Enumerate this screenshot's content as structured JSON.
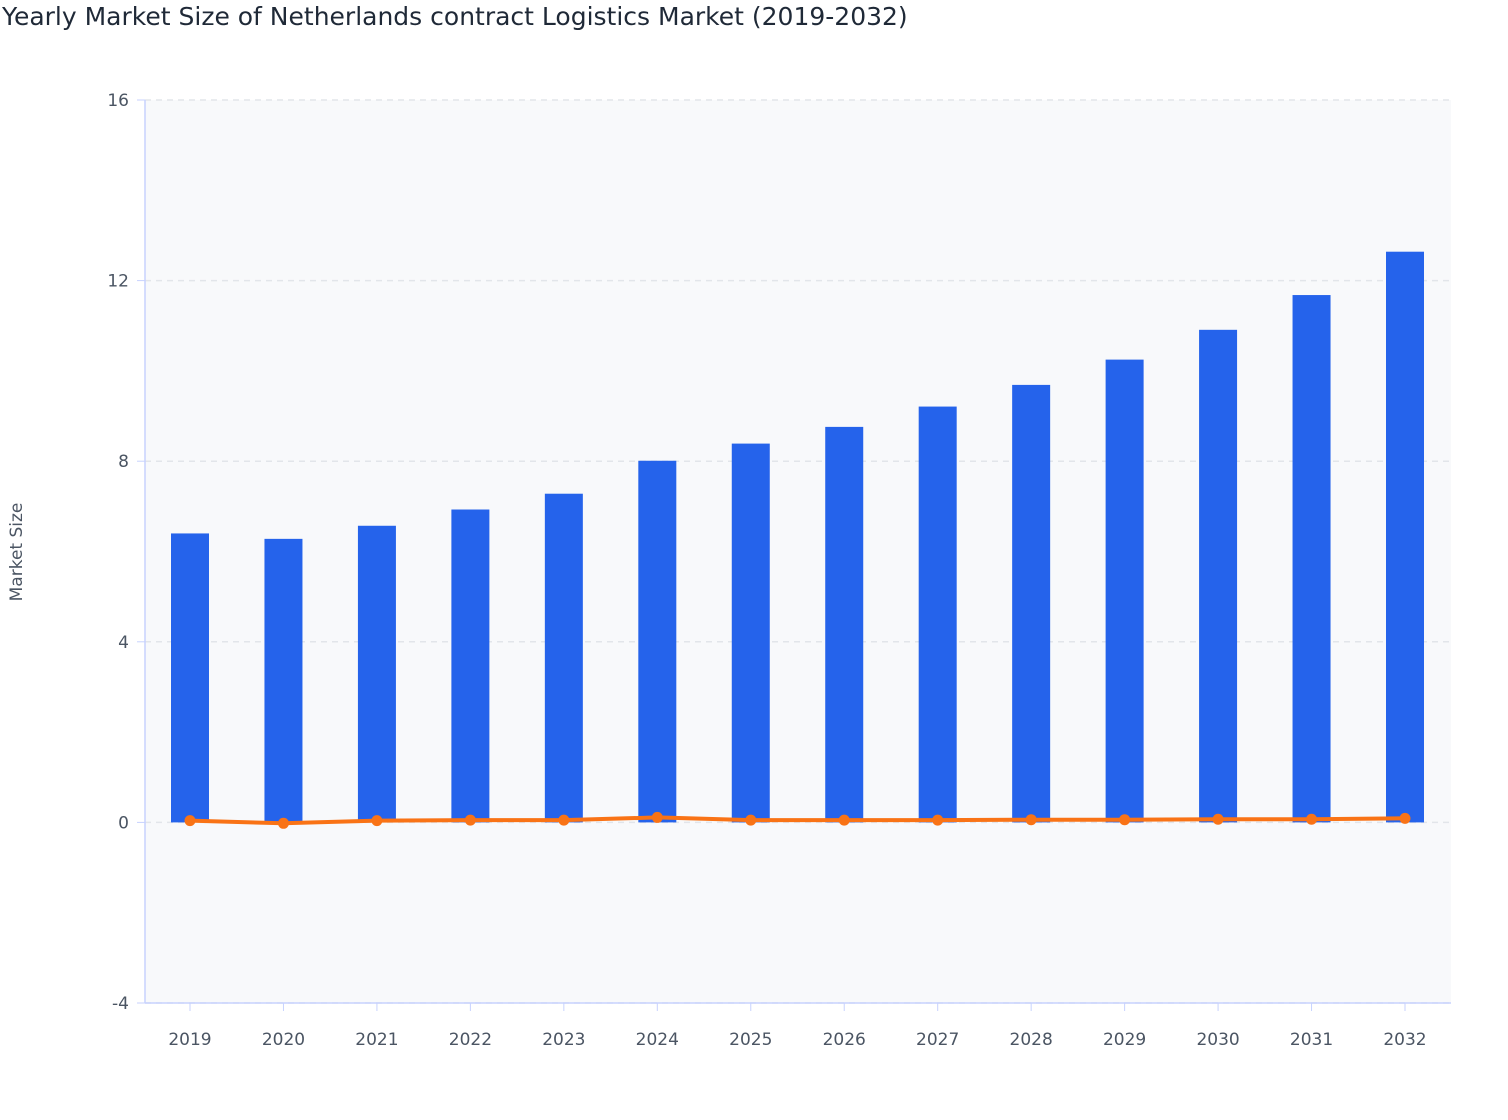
{
  "chart_data": {
    "type": "bar",
    "title": "Yearly Market Size of Netherlands contract Logistics Market (2019-2032)",
    "xlabel": "",
    "ylabel": "Market Size",
    "ylim": [
      -4,
      16
    ],
    "yticks": [
      -4,
      0,
      4,
      8,
      12,
      16
    ],
    "grid": true,
    "categories": [
      "2019",
      "2020",
      "2021",
      "2022",
      "2023",
      "2024",
      "2025",
      "2026",
      "2027",
      "2028",
      "2029",
      "2030",
      "2031",
      "2032"
    ],
    "series": [
      {
        "type": "bar",
        "color": "#2563eb",
        "values": [
          6.4,
          6.28,
          6.57,
          6.93,
          7.28,
          8.01,
          8.39,
          8.76,
          9.21,
          9.69,
          10.25,
          10.91,
          11.68,
          12.64
        ]
      },
      {
        "type": "line",
        "color": "#f97316",
        "values": [
          0.04,
          -0.02,
          0.04,
          0.05,
          0.05,
          0.11,
          0.05,
          0.05,
          0.05,
          0.06,
          0.06,
          0.07,
          0.07,
          0.09
        ]
      }
    ]
  }
}
